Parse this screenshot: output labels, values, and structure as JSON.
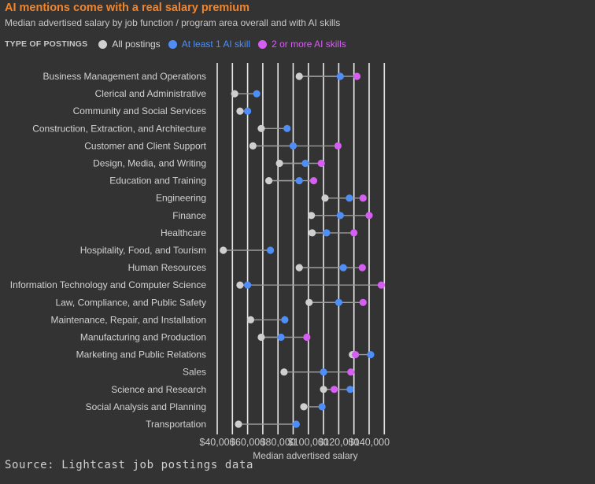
{
  "header": {
    "title": "AI mentions come with a real salary premium",
    "subtitle": "Median advertised salary by job function / program area overall and with AI skills"
  },
  "legend": {
    "title": "TYPE OF POSTINGS",
    "items": [
      {
        "label": "All postings",
        "color": "#cfcfcf",
        "text_color": "#d6d6d6"
      },
      {
        "label": "At least 1 AI skill",
        "color": "#4f8ef7",
        "text_color": "#4f8ef7"
      },
      {
        "label": "2 or more AI skills",
        "color": "#d65ef2",
        "text_color": "#d65ef2"
      }
    ]
  },
  "source": "Source: Lightcast job postings data",
  "chart_data": {
    "type": "dot-plot",
    "xlabel": "Median advertised salary",
    "xlim": [
      40000,
      152000
    ],
    "xticks": [
      40000,
      60000,
      80000,
      100000,
      120000,
      140000
    ],
    "xtick_labels": [
      "$40,000",
      "$60,000",
      "$80,000",
      "$100,000",
      "$120,000",
      "$140,000"
    ],
    "grid": "vertical",
    "series_colors": {
      "all": "#cfcfcf",
      "ai1": "#4f8ef7",
      "ai2": "#d65ef2"
    },
    "series": [
      "All postings",
      "At least 1 AI skill",
      "2 or more AI skills"
    ],
    "categories": [
      "Business Management and Operations",
      "Clerical and Administrative",
      "Community and Social Services",
      "Construction, Extraction, and Architecture",
      "Customer and Client Support",
      "Design, Media, and Writing",
      "Education and Training",
      "Engineering",
      "Finance",
      "Healthcare",
      "Hospitality, Food, and Tourism",
      "Human Resources",
      "Information Technology and Computer Science",
      "Law, Compliance, and Public Safety",
      "Maintenance, Repair, and Installation",
      "Manufacturing and Production",
      "Marketing and Public Relations",
      "Sales",
      "Science and Research",
      "Social Analysis and Planning",
      "Transportation"
    ],
    "all_postings": [
      94000,
      51500,
      55000,
      69000,
      63500,
      81000,
      74000,
      111000,
      102000,
      102500,
      44000,
      94000,
      55000,
      100500,
      62000,
      69000,
      129000,
      84000,
      110000,
      97000,
      54000
    ],
    "at_least_1_ai": [
      121000,
      66000,
      60000,
      86000,
      90000,
      98000,
      94000,
      127000,
      121000,
      112000,
      75000,
      123000,
      60000,
      120000,
      84500,
      82000,
      141000,
      110000,
      127500,
      109000,
      92000
    ],
    "two_or_more_ai": [
      132000,
      null,
      null,
      null,
      119500,
      108500,
      103500,
      136000,
      140000,
      130000,
      null,
      135500,
      148000,
      136000,
      null,
      99000,
      131000,
      128000,
      117000,
      null,
      null
    ]
  }
}
